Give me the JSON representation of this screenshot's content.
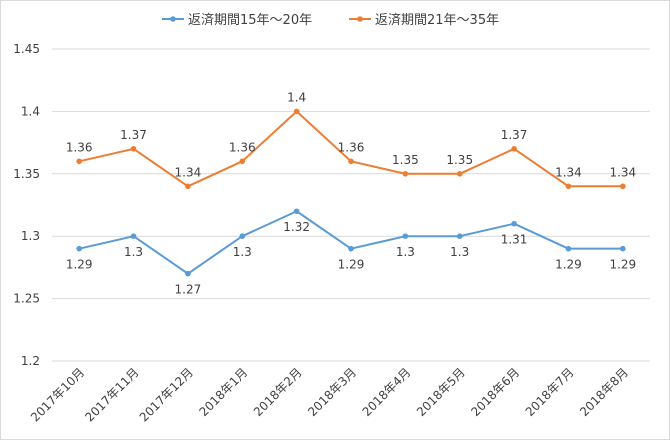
{
  "chart_data": {
    "type": "line",
    "categories": [
      "2017年10月",
      "2017年11月",
      "2017年12月",
      "2018年1月",
      "2018年2月",
      "2018年3月",
      "2018年4月",
      "2018年5月",
      "2018年6月",
      "2018年7月",
      "2018年8月"
    ],
    "series": [
      {
        "name": "返済期間15年～20年",
        "color": "#5b9bd5",
        "values": [
          1.29,
          1.3,
          1.27,
          1.3,
          1.32,
          1.29,
          1.3,
          1.3,
          1.31,
          1.29,
          1.29
        ],
        "labels": [
          "1.29",
          "1.3",
          "1.27",
          "1.3",
          "1.32",
          "1.29",
          "1.3",
          "1.3",
          "1.31",
          "1.29",
          "1.29"
        ]
      },
      {
        "name": "返済期間21年～35年",
        "color": "#ed7d31",
        "values": [
          1.36,
          1.37,
          1.34,
          1.36,
          1.4,
          1.36,
          1.35,
          1.35,
          1.37,
          1.34,
          1.34
        ],
        "labels": [
          "1.36",
          "1.37",
          "1.34",
          "1.36",
          "1.4",
          "1.36",
          "1.35",
          "1.35",
          "1.37",
          "1.34",
          "1.34"
        ]
      }
    ],
    "y_ticks": [
      "1.2",
      "1.25",
      "1.3",
      "1.35",
      "1.4",
      "1.45"
    ],
    "ylim": [
      1.2,
      1.45
    ],
    "grid": true,
    "legend_position": "top"
  }
}
